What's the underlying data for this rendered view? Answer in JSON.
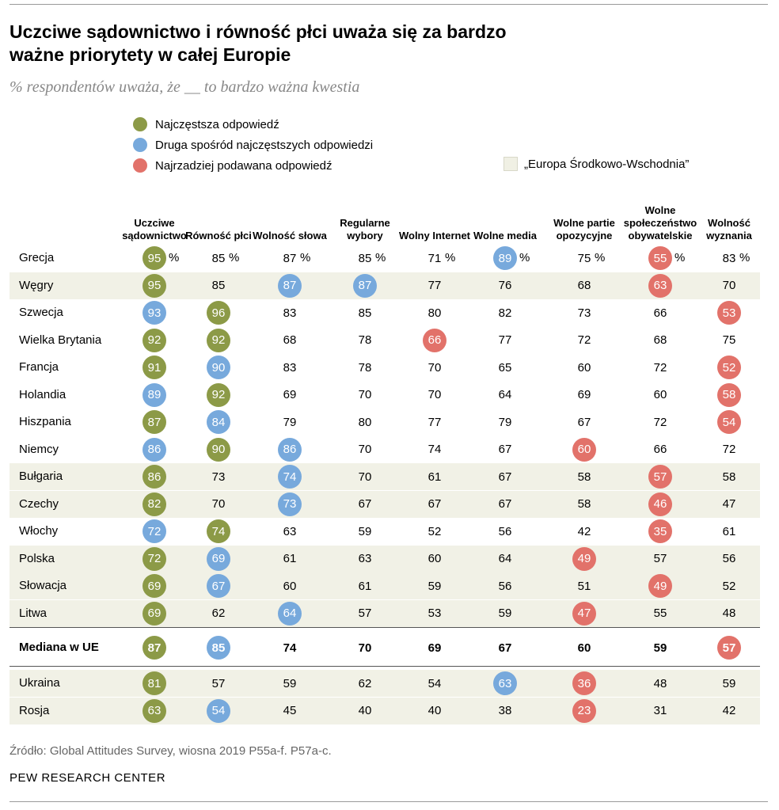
{
  "title": "Uczciwe sądownictwo i równość płci uważa się za bardzo ważne priorytety w całej Europie",
  "subtitle": "% respondentów uważa, że __ to bardzo ważna kwestia",
  "legend": {
    "top": "Najczęstsza odpowiedź",
    "second": "Druga spośród najczęstszych odpowiedzi",
    "lowest": "Najrzadziej podawana odpowiedź",
    "cee": "„Europa Środkowo-Wschodnia”"
  },
  "colors": {
    "top": "#8c9a47",
    "second": "#77a9dc",
    "lowest": "#e2726a",
    "cee_bg": "#f1f1e6"
  },
  "percent_sign": "%",
  "source": "Źródło: Global Attitudes Survey, wiosna 2019 P55a-f. P57a-c.",
  "brand": "PEW RESEARCH CENTER",
  "chart_data": {
    "type": "table",
    "columns": [
      "Uczciwe sądownictwo",
      "Równość płci",
      "Wolność słowa",
      "Regularne wybory",
      "Wolny Internet",
      "Wolne media",
      "Wolne partie opozycyjne",
      "Wolne społeczeństwo obywatelskie",
      "Wolność wyznania"
    ],
    "rows": [
      {
        "label": "Grecja",
        "cee": false,
        "median": false,
        "values": [
          95,
          85,
          87,
          85,
          71,
          89,
          75,
          55,
          83
        ],
        "marks": [
          "t",
          "",
          "",
          "",
          "",
          "s",
          "",
          "l",
          ""
        ]
      },
      {
        "label": "Węgry",
        "cee": true,
        "median": false,
        "values": [
          95,
          85,
          87,
          87,
          77,
          76,
          68,
          63,
          70
        ],
        "marks": [
          "t",
          "",
          "s",
          "s",
          "",
          "",
          "",
          "l",
          ""
        ]
      },
      {
        "label": "Szwecja",
        "cee": false,
        "median": false,
        "values": [
          93,
          96,
          83,
          85,
          80,
          82,
          73,
          66,
          53
        ],
        "marks": [
          "s",
          "t",
          "",
          "",
          "",
          "",
          "",
          "",
          "l"
        ]
      },
      {
        "label": "Wielka Brytania",
        "cee": false,
        "median": false,
        "values": [
          92,
          92,
          68,
          78,
          66,
          77,
          72,
          68,
          75
        ],
        "marks": [
          "t",
          "t",
          "",
          "",
          "l",
          "",
          "",
          "",
          ""
        ]
      },
      {
        "label": "Francja",
        "cee": false,
        "median": false,
        "values": [
          91,
          90,
          83,
          78,
          70,
          65,
          60,
          72,
          52
        ],
        "marks": [
          "t",
          "s",
          "",
          "",
          "",
          "",
          "",
          "",
          "l"
        ]
      },
      {
        "label": "Holandia",
        "cee": false,
        "median": false,
        "values": [
          89,
          92,
          69,
          70,
          70,
          64,
          69,
          60,
          58
        ],
        "marks": [
          "s",
          "t",
          "",
          "",
          "",
          "",
          "",
          "",
          "l"
        ]
      },
      {
        "label": "Hiszpania",
        "cee": false,
        "median": false,
        "values": [
          87,
          84,
          79,
          80,
          77,
          79,
          67,
          72,
          54
        ],
        "marks": [
          "t",
          "s",
          "",
          "",
          "",
          "",
          "",
          "",
          "l"
        ]
      },
      {
        "label": "Niemcy",
        "cee": false,
        "median": false,
        "values": [
          86,
          90,
          86,
          70,
          74,
          67,
          60,
          66,
          72
        ],
        "marks": [
          "s",
          "t",
          "s",
          "",
          "",
          "",
          "l",
          "",
          ""
        ]
      },
      {
        "label": "Bułgaria",
        "cee": true,
        "median": false,
        "values": [
          86,
          73,
          74,
          70,
          61,
          67,
          58,
          57,
          58
        ],
        "marks": [
          "t",
          "",
          "s",
          "",
          "",
          "",
          "",
          "l",
          ""
        ]
      },
      {
        "label": "Czechy",
        "cee": true,
        "median": false,
        "values": [
          82,
          70,
          73,
          67,
          67,
          67,
          58,
          46,
          47
        ],
        "marks": [
          "t",
          "",
          "s",
          "",
          "",
          "",
          "",
          "l",
          ""
        ]
      },
      {
        "label": "Włochy",
        "cee": false,
        "median": false,
        "values": [
          72,
          74,
          63,
          59,
          52,
          56,
          42,
          35,
          61
        ],
        "marks": [
          "s",
          "t",
          "",
          "",
          "",
          "",
          "",
          "l",
          ""
        ]
      },
      {
        "label": "Polska",
        "cee": true,
        "median": false,
        "values": [
          72,
          69,
          61,
          63,
          60,
          64,
          49,
          57,
          56
        ],
        "marks": [
          "t",
          "s",
          "",
          "",
          "",
          "",
          "l",
          "",
          ""
        ]
      },
      {
        "label": "Słowacja",
        "cee": true,
        "median": false,
        "values": [
          69,
          67,
          60,
          61,
          59,
          56,
          51,
          49,
          52
        ],
        "marks": [
          "t",
          "s",
          "",
          "",
          "",
          "",
          "",
          "l",
          ""
        ]
      },
      {
        "label": "Litwa",
        "cee": true,
        "median": false,
        "values": [
          69,
          62,
          64,
          57,
          53,
          59,
          47,
          55,
          48
        ],
        "marks": [
          "t",
          "",
          "s",
          "",
          "",
          "",
          "l",
          "",
          ""
        ]
      },
      {
        "label": "Mediana w UE",
        "cee": false,
        "median": true,
        "values": [
          87,
          85,
          74,
          70,
          69,
          67,
          60,
          59,
          57
        ],
        "marks": [
          "t",
          "s",
          "",
          "",
          "",
          "",
          "",
          "",
          "l"
        ]
      },
      {
        "label": "Ukraina",
        "cee": true,
        "median": false,
        "values": [
          81,
          57,
          59,
          62,
          54,
          63,
          36,
          48,
          59
        ],
        "marks": [
          "t",
          "",
          "",
          "",
          "",
          "s",
          "l",
          "",
          ""
        ]
      },
      {
        "label": "Rosja",
        "cee": true,
        "median": false,
        "values": [
          63,
          54,
          45,
          40,
          40,
          38,
          23,
          31,
          42
        ],
        "marks": [
          "t",
          "s",
          "",
          "",
          "",
          "",
          "l",
          "",
          ""
        ]
      }
    ]
  }
}
